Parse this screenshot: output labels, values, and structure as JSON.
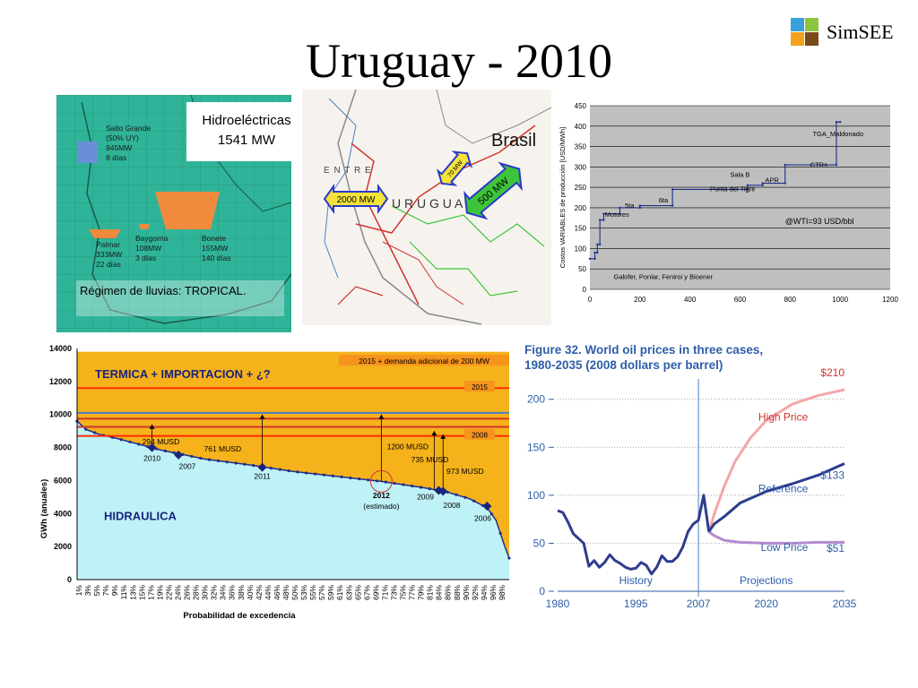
{
  "slide": {
    "title": "Uruguay -  2010",
    "logo_text": "SimSEE",
    "logo_colors": [
      "#3aa0dc",
      "#8cc63f",
      "#f4a21d",
      "#7a4a1a"
    ]
  },
  "hydro_map": {
    "box_title": "Hidroeléctricas",
    "box_value": "1541 MW",
    "regime_label": "Régimen de lluvias: ",
    "regime_value": "TROPICAL.",
    "plants": [
      {
        "name": "Salto Grande",
        "line2": "(50% UY)",
        "power": "945MW",
        "days": "8 días"
      },
      {
        "name": "Palmar",
        "power": "333MW",
        "days": "22 días"
      },
      {
        "name": "Baygorria",
        "power": "108MW",
        "days": "3 días"
      },
      {
        "name": "Bonete",
        "power": "155MW",
        "days": "140 días"
      }
    ],
    "colors": {
      "water": "#2fb49a",
      "reservoir": "#f08a3c",
      "salto": "#6b8fd6"
    }
  },
  "grid_map": {
    "country_label": "U R U G U A",
    "region_label": "E N T R E",
    "brasil_label": "Brasil",
    "arrows": [
      {
        "label": "2000 MW",
        "color": "#f5e33a"
      },
      {
        "label": "70 MW",
        "color": "#f5e33a"
      },
      {
        "label": "500 MW",
        "color": "#3ec43a"
      }
    ]
  },
  "chart_data": [
    {
      "type": "line",
      "title": "",
      "xlabel": "",
      "ylabel": "Costos VARIABLES de producción [USD/MWh]",
      "xlim": [
        0,
        1200
      ],
      "ylim": [
        0,
        450
      ],
      "xticks": [
        0,
        200,
        400,
        600,
        800,
        1000,
        1200
      ],
      "yticks": [
        0,
        50,
        100,
        150,
        200,
        250,
        300,
        350,
        400,
        450
      ],
      "grid": true,
      "series": [
        {
          "values": [
            {
              "x": 0,
              "y": 75
            },
            {
              "x": 20,
              "y": 75
            },
            {
              "x": 20,
              "y": 90
            },
            {
              "x": 30,
              "y": 90
            },
            {
              "x": 30,
              "y": 110
            },
            {
              "x": 40,
              "y": 110
            },
            {
              "x": 40,
              "y": 170
            },
            {
              "x": 55,
              "y": 170
            },
            {
              "x": 55,
              "y": 185
            },
            {
              "x": 120,
              "y": 185
            },
            {
              "x": 120,
              "y": 200
            },
            {
              "x": 200,
              "y": 200
            },
            {
              "x": 200,
              "y": 205
            },
            {
              "x": 330,
              "y": 205
            },
            {
              "x": 330,
              "y": 245
            },
            {
              "x": 630,
              "y": 245
            },
            {
              "x": 630,
              "y": 255
            },
            {
              "x": 690,
              "y": 255
            },
            {
              "x": 690,
              "y": 260
            },
            {
              "x": 780,
              "y": 260
            },
            {
              "x": 780,
              "y": 305
            },
            {
              "x": 985,
              "y": 305
            },
            {
              "x": 985,
              "y": 410
            },
            {
              "x": 1000,
              "y": 410
            }
          ]
        }
      ],
      "labels": [
        {
          "text": "TGA_Maldonado",
          "x": 890,
          "y": 375
        },
        {
          "text": "CTRs",
          "x": 880,
          "y": 300
        },
        {
          "text": "Sala B",
          "x": 560,
          "y": 275
        },
        {
          "text": "APR",
          "x": 700,
          "y": 262
        },
        {
          "text": "Punta del Tigre",
          "x": 480,
          "y": 240
        },
        {
          "text": "6ta",
          "x": 275,
          "y": 213
        },
        {
          "text": "5ta",
          "x": 140,
          "y": 200
        },
        {
          "text": "Motores",
          "x": 60,
          "y": 178
        },
        {
          "text": "@WTI=93 USD/bbl",
          "x": 780,
          "y": 160
        },
        {
          "text": "Galofer, Ponlar, Feniroi y Bioener",
          "x": 95,
          "y": 25
        }
      ]
    },
    {
      "type": "area",
      "title": "TERMICA + IMPORTACION + ¿?",
      "xlabel": "Probabilidad de excedencia",
      "ylabel": "GWh (anuales)",
      "ylim": [
        0,
        14000
      ],
      "yticks": [
        0,
        2000,
        4000,
        6000,
        8000,
        10000,
        12000,
        14000
      ],
      "categories": [
        "1%",
        "3%",
        "5%",
        "7%",
        "9%",
        "11%",
        "13%",
        "15%",
        "17%",
        "19%",
        "22%",
        "24%",
        "26%",
        "28%",
        "30%",
        "32%",
        "34%",
        "36%",
        "38%",
        "40%",
        "42%",
        "44%",
        "46%",
        "48%",
        "50%",
        "53%",
        "55%",
        "57%",
        "59%",
        "61%",
        "63%",
        "65%",
        "67%",
        "69%",
        "71%",
        "73%",
        "75%",
        "77%",
        "79%",
        "81%",
        "84%",
        "86%",
        "88%",
        "90%",
        "92%",
        "94%",
        "96%",
        "98%"
      ],
      "hydro_label": "HIDRAULICA",
      "curve": [
        {
          "p": 1,
          "y": 9600
        },
        {
          "p": 3,
          "y": 9100
        },
        {
          "p": 6,
          "y": 8800
        },
        {
          "p": 10,
          "y": 8550
        },
        {
          "p": 15,
          "y": 8200
        },
        {
          "p": 20,
          "y": 7850
        },
        {
          "p": 30,
          "y": 7300
        },
        {
          "p": 40,
          "y": 6950
        },
        {
          "p": 50,
          "y": 6550
        },
        {
          "p": 60,
          "y": 6250
        },
        {
          "p": 70,
          "y": 5950
        },
        {
          "p": 80,
          "y": 5550
        },
        {
          "p": 85,
          "y": 5300
        },
        {
          "p": 90,
          "y": 4900
        },
        {
          "p": 94,
          "y": 4350
        },
        {
          "p": 96,
          "y": 3600
        },
        {
          "p": 98,
          "y": 2000
        },
        {
          "p": 99,
          "y": 1300
        }
      ],
      "demand_lines": [
        {
          "label": "2015",
          "y": 11600,
          "color": "#ff2a00"
        },
        {
          "label": "2008",
          "y": 8700,
          "color": "#ff2a00"
        },
        {
          "label": "",
          "y": 10100,
          "color": "#4a7fc8"
        },
        {
          "label": "",
          "y": 9750,
          "color": "#d0332f"
        },
        {
          "label": "",
          "y": 9250,
          "color": "#d0332f"
        }
      ],
      "box_label": "2015 + demanda adicional de 200 MW",
      "box_y": 13400,
      "annotations": [
        {
          "text": "294 MUSD",
          "p": 20,
          "y": 8200
        },
        {
          "text": "761 MUSD",
          "p": 34,
          "y": 7750
        },
        {
          "text": "1200 MUSD",
          "p": 76,
          "y": 7900
        },
        {
          "text": "735 MUSD",
          "p": 81,
          "y": 7100
        },
        {
          "text": "973 MUSD",
          "p": 89,
          "y": 6400
        },
        {
          "text": "2010",
          "p": 18,
          "y": 7200
        },
        {
          "text": "2007",
          "p": 26,
          "y": 6700
        },
        {
          "text": "2011",
          "p": 43,
          "y": 6100
        },
        {
          "text": "2012",
          "p": 70,
          "y": 4950
        },
        {
          "text": "(estimado)",
          "p": 70,
          "y": 4300
        },
        {
          "text": "2009",
          "p": 80,
          "y": 4850
        },
        {
          "text": "2008",
          "p": 86,
          "y": 4350
        },
        {
          "text": "2006",
          "p": 93,
          "y": 3550
        }
      ],
      "markers": [
        {
          "p": 18,
          "y": 8000
        },
        {
          "p": 24,
          "y": 7550
        },
        {
          "p": 43,
          "y": 6800
        },
        {
          "p": 83,
          "y": 5400
        },
        {
          "p": 84,
          "y": 5350
        },
        {
          "p": 94,
          "y": 4450
        }
      ],
      "marker_arrows": [
        {
          "p": 18,
          "y_to": 9400
        },
        {
          "p": 43,
          "y_to": 10000
        },
        {
          "p": 70,
          "y_to": 10000
        },
        {
          "p": 82,
          "y_to": 9000
        },
        {
          "p": 84,
          "y_to": 8800
        }
      ],
      "colors": {
        "thermal": "#f5b21a",
        "hydro": "#bff2f6",
        "curve": "#1f2f8c"
      }
    },
    {
      "type": "line",
      "title": "Figure 32. World oil prices in three cases,",
      "subtitle": "1980-2035 (2008 dollars per barrel)",
      "xlim": [
        1980,
        2035
      ],
      "ylim": [
        0,
        210
      ],
      "xticks": [
        1980,
        1995,
        2007,
        2020,
        2035
      ],
      "yticks": [
        0,
        50,
        100,
        150,
        200
      ],
      "divider_x": 2007,
      "region_labels": [
        "History",
        "Projections"
      ],
      "series": [
        {
          "name": "High Price",
          "end_label": "$210",
          "color": "#f4a6a8",
          "values": [
            {
              "x": 2009,
              "y": 62
            },
            {
              "x": 2010,
              "y": 80
            },
            {
              "x": 2012,
              "y": 110
            },
            {
              "x": 2014,
              "y": 135
            },
            {
              "x": 2017,
              "y": 160
            },
            {
              "x": 2020,
              "y": 178
            },
            {
              "x": 2025,
              "y": 195
            },
            {
              "x": 2030,
              "y": 204
            },
            {
              "x": 2035,
              "y": 210
            }
          ]
        },
        {
          "name": "Reference",
          "end_label": "$133",
          "color": "#2e3c8e",
          "values": [
            {
              "x": 2009,
              "y": 62
            },
            {
              "x": 2010,
              "y": 70
            },
            {
              "x": 2012,
              "y": 78
            },
            {
              "x": 2015,
              "y": 92
            },
            {
              "x": 2020,
              "y": 104
            },
            {
              "x": 2025,
              "y": 112
            },
            {
              "x": 2030,
              "y": 121
            },
            {
              "x": 2035,
              "y": 133
            }
          ]
        },
        {
          "name": "Low Price",
          "end_label": "$51",
          "color": "#b48ad0",
          "values": [
            {
              "x": 2009,
              "y": 62
            },
            {
              "x": 2010,
              "y": 58
            },
            {
              "x": 2012,
              "y": 53
            },
            {
              "x": 2015,
              "y": 51
            },
            {
              "x": 2020,
              "y": 50
            },
            {
              "x": 2025,
              "y": 50
            },
            {
              "x": 2030,
              "y": 51
            },
            {
              "x": 2035,
              "y": 51
            }
          ]
        },
        {
          "name": "History",
          "color": "#2e3c8e",
          "values": [
            {
              "x": 1980,
              "y": 84
            },
            {
              "x": 1981,
              "y": 82
            },
            {
              "x": 1982,
              "y": 72
            },
            {
              "x": 1983,
              "y": 60
            },
            {
              "x": 1984,
              "y": 55
            },
            {
              "x": 1985,
              "y": 50
            },
            {
              "x": 1986,
              "y": 26
            },
            {
              "x": 1987,
              "y": 32
            },
            {
              "x": 1988,
              "y": 25
            },
            {
              "x": 1989,
              "y": 30
            },
            {
              "x": 1990,
              "y": 38
            },
            {
              "x": 1991,
              "y": 32
            },
            {
              "x": 1992,
              "y": 29
            },
            {
              "x": 1993,
              "y": 25
            },
            {
              "x": 1994,
              "y": 23
            },
            {
              "x": 1995,
              "y": 24
            },
            {
              "x": 1996,
              "y": 30
            },
            {
              "x": 1997,
              "y": 27
            },
            {
              "x": 1998,
              "y": 18
            },
            {
              "x": 1999,
              "y": 25
            },
            {
              "x": 2000,
              "y": 37
            },
            {
              "x": 2001,
              "y": 31
            },
            {
              "x": 2002,
              "y": 31
            },
            {
              "x": 2003,
              "y": 36
            },
            {
              "x": 2004,
              "y": 46
            },
            {
              "x": 2005,
              "y": 62
            },
            {
              "x": 2006,
              "y": 70
            },
            {
              "x": 2007,
              "y": 74
            },
            {
              "x": 2008,
              "y": 100
            },
            {
              "x": 2009,
              "y": 62
            }
          ]
        }
      ]
    }
  ]
}
